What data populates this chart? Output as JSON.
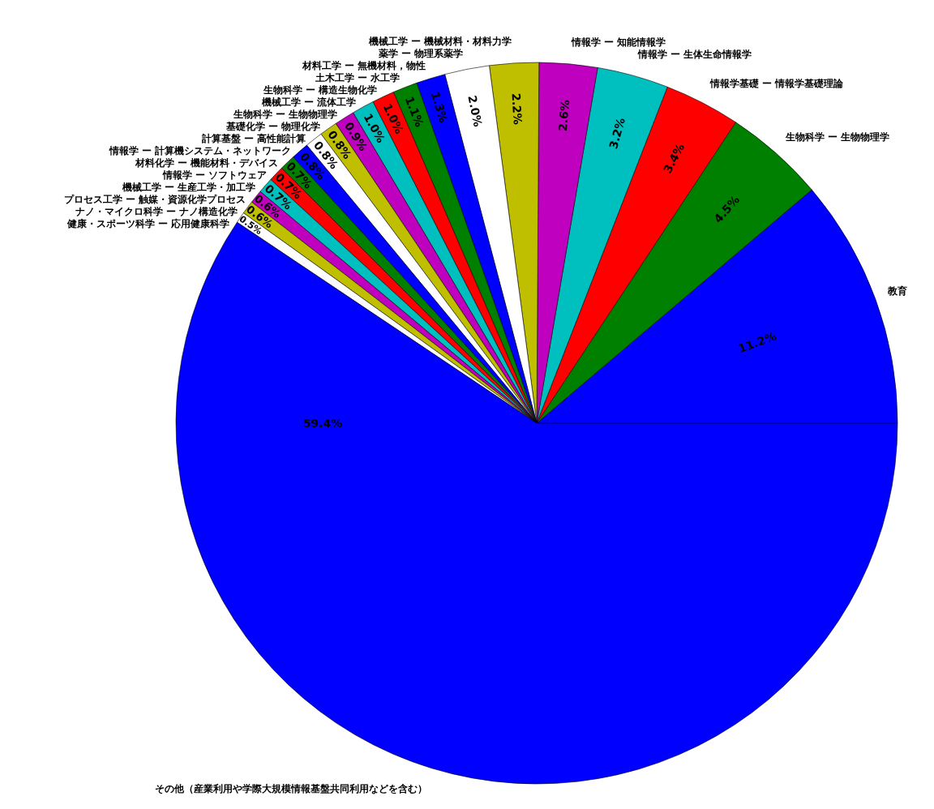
{
  "chart_data": {
    "type": "pie",
    "categories": [
      "教育",
      "生物科学 ー 生物物理学",
      "情報学基礎 ー 情報学基礎理論",
      "情報学 ー 生体生命情報学",
      "情報学 ー 知能情報学",
      "機械工学 ー 機械材料・材料力学",
      "薬学 ー 物理系薬学",
      "材料工学 ー 無機材料，物性",
      "土木工学 ー 水工学",
      "生物科学 ー 構造生物化学",
      "機械工学 ー 流体工学",
      "生物科学 ー 生物物理学",
      "基礎化学 ー 物理化学",
      "計算基盤 ー 高性能計算",
      "情報学 ー 計算機システム・ネットワーク",
      "材料化学 ー 機能材料・デバイス",
      "情報学 ー ソフトウェア",
      "機械工学 ー 生産工学・加工学",
      "プロセス工学 ー 触媒・資源化学プロセス",
      "ナノ・マイクロ科学 ー ナノ構造化学",
      "健康・スポーツ科学 ー 応用健康科学",
      "その他（産業利用や学際大規模情報基盤共同利用などを含む）"
    ],
    "values": [
      11.2,
      4.5,
      3.4,
      3.2,
      2.6,
      2.2,
      2.0,
      1.3,
      1.1,
      1.0,
      1.0,
      0.9,
      0.8,
      0.8,
      0.8,
      0.7,
      0.7,
      0.7,
      0.6,
      0.6,
      0.5,
      59.4
    ],
    "colors": [
      "#0000ff",
      "#008000",
      "#ff0000",
      "#00bfbf",
      "#bf00bf",
      "#bfbf00",
      "#ffffff",
      "#0000ff",
      "#008000",
      "#ff0000",
      "#00bfbf",
      "#bf00bf",
      "#bfbf00",
      "#ffffff",
      "#0000ff",
      "#008000",
      "#ff0000",
      "#00bfbf",
      "#bf00bf",
      "#bfbf00",
      "#ffffff",
      "#0000ff"
    ],
    "value_labels": [
      "11.2%",
      "4.5%",
      "3.4%",
      "3.2%",
      "2.6%",
      "2.2%",
      "2.0%",
      "1.3%",
      "1.1%",
      "1.0%",
      "1.0%",
      "0.9%",
      "0.8%",
      "0.8%",
      "0.8%",
      "0.7%",
      "0.7%",
      "0.7%",
      "0.6%",
      "0.6%",
      "0.5%",
      "59.4%"
    ]
  }
}
